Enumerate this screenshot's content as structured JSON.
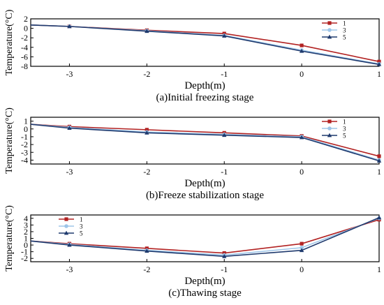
{
  "colors": {
    "s1": "#b22222",
    "s3": "#9ec5e8",
    "s5": "#1f3a6e"
  },
  "chart_data": [
    {
      "type": "line",
      "title": "(a)Initial freezing stage",
      "xlabel": "Depth(m)",
      "ylabel": "Temperature(°C)",
      "xlim": [
        -3.5,
        1
      ],
      "ylim": [
        -8,
        2
      ],
      "xticks": [
        -3,
        -2,
        -1,
        0,
        1
      ],
      "yticks": [
        2,
        0,
        -2,
        -4,
        -6,
        -8
      ],
      "x": [
        -3.5,
        -3,
        -2,
        -1,
        0,
        1
      ],
      "legend_position": "top-right",
      "series": [
        {
          "name": "1",
          "marker": "square",
          "values": [
            0.7,
            0.4,
            -0.4,
            -1.1,
            -3.6,
            -7.0
          ]
        },
        {
          "name": "3",
          "marker": "circle",
          "values": [
            0.7,
            0.4,
            -0.5,
            -1.5,
            -4.6,
            -7.5
          ]
        },
        {
          "name": "5",
          "marker": "triangle",
          "values": [
            0.7,
            0.4,
            -0.6,
            -1.6,
            -4.8,
            -7.6
          ]
        }
      ]
    },
    {
      "type": "line",
      "title": "(b)Freeze stabilization stage",
      "xlabel": "Depth(m)",
      "ylabel": "Temperature(°C)",
      "xlim": [
        -3.5,
        1
      ],
      "ylim": [
        -4.5,
        1.5
      ],
      "xticks": [
        -3,
        -2,
        -1,
        0,
        1
      ],
      "yticks": [
        1,
        0,
        -1,
        -2,
        -3,
        -4
      ],
      "x": [
        -3.5,
        -3,
        -2,
        -1,
        0,
        1
      ],
      "legend_position": "top-right",
      "series": [
        {
          "name": "1",
          "marker": "square",
          "values": [
            0.6,
            0.3,
            -0.1,
            -0.5,
            -0.9,
            -3.5
          ]
        },
        {
          "name": "3",
          "marker": "circle",
          "values": [
            0.6,
            0.2,
            -0.4,
            -0.7,
            -1.0,
            -4.0
          ]
        },
        {
          "name": "5",
          "marker": "triangle",
          "values": [
            0.6,
            0.1,
            -0.5,
            -0.8,
            -1.1,
            -4.1
          ]
        }
      ]
    },
    {
      "type": "line",
      "title": "(c)Thawing stage",
      "xlabel": "Depth(m)",
      "ylabel": "Temperature(°C)",
      "xlim": [
        -3.5,
        1
      ],
      "ylim": [
        -2.5,
        4.5
      ],
      "xticks": [
        -3,
        -2,
        -1,
        0,
        1
      ],
      "yticks": [
        4,
        3,
        2,
        1,
        0,
        -1,
        -2
      ],
      "x": [
        -3.5,
        -3,
        -2,
        -1,
        0,
        1
      ],
      "legend_position": "top-left",
      "series": [
        {
          "name": "1",
          "marker": "square",
          "values": [
            0.6,
            0.2,
            -0.5,
            -1.2,
            0.2,
            3.8
          ]
        },
        {
          "name": "3",
          "marker": "circle",
          "values": [
            0.6,
            0.1,
            -0.8,
            -1.5,
            -0.4,
            4.0
          ]
        },
        {
          "name": "5",
          "marker": "triangle",
          "values": [
            0.6,
            0.0,
            -0.9,
            -1.7,
            -0.8,
            4.1
          ]
        }
      ]
    }
  ]
}
